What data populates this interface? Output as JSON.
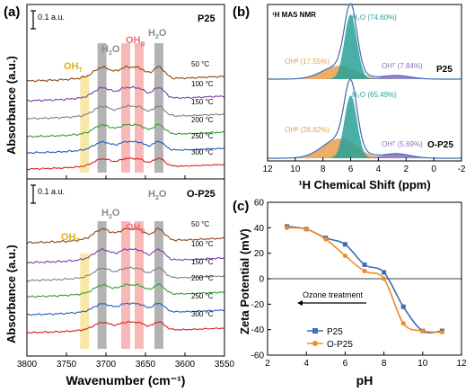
{
  "chart_data": [
    {
      "panel": "(a)",
      "type": "line",
      "xlabel": "Wavenumber (cm⁻¹)",
      "ylabel": "Absorbance (a.u.)",
      "xlim": [
        3800,
        3550
      ],
      "x_ticks": [
        3800,
        3750,
        3700,
        3650,
        3600,
        3550
      ],
      "scale_bar": "0.1 a.u.",
      "band_labels": {
        "OHT": "OH",
        "OHT_sub": "T",
        "H2O": "H",
        "H2O_sub": "2",
        "H2O_tail": "O",
        "OHB": "OH",
        "OHB_sub": "B"
      },
      "bands": [
        {
          "name": "OHT",
          "center": 3727,
          "color": "#f5e08a"
        },
        {
          "name": "H2O",
          "center": 3705,
          "color": "#9a9a9a"
        },
        {
          "name": "OHB",
          "center": 3675,
          "color": "#f7a0a0"
        },
        {
          "name": "OHB",
          "center": 3658,
          "color": "#f7a0a0"
        },
        {
          "name": "H2O",
          "center": 3633,
          "color": "#9a9a9a"
        }
      ],
      "subpanels": [
        {
          "title": "P25",
          "series": [
            {
              "name": "50 °C",
              "color": "#8b4513"
            },
            {
              "name": "100 °C",
              "color": "#7b3fa8"
            },
            {
              "name": "150 °C",
              "color": "#808080"
            },
            {
              "name": "200 °C",
              "color": "#2e9e2e"
            },
            {
              "name": "250 °C",
              "color": "#1f5fbf"
            },
            {
              "name": "300 °C",
              "color": "#d81e1e"
            }
          ]
        },
        {
          "title": "O-P25",
          "series": [
            {
              "name": "50 °C",
              "color": "#8b4513"
            },
            {
              "name": "100 °C",
              "color": "#7b3fa8"
            },
            {
              "name": "150 °C",
              "color": "#808080"
            },
            {
              "name": "200 °C",
              "color": "#2e9e2e"
            },
            {
              "name": "250 °C",
              "color": "#1f5fbf"
            },
            {
              "name": "300 °C",
              "color": "#d81e1e"
            }
          ]
        }
      ]
    },
    {
      "panel": "(b)",
      "type": "area",
      "title": "¹H MAS NMR",
      "xlabel": "¹H Chemical Shift (ppm)",
      "xlim": [
        12,
        -2
      ],
      "x_ticks": [
        12,
        10,
        8,
        6,
        4,
        2,
        0,
        -2
      ],
      "spectra": [
        {
          "sample": "P25",
          "components": [
            {
              "label": "H₂O (74.60%)",
              "center": 6.0,
              "color": "#2aa198"
            },
            {
              "label": "OHᴮ (17.55%)",
              "center": 6.8,
              "color": "#e8a050"
            },
            {
              "label": "OHᵀ (7.84%)",
              "center": 2.7,
              "color": "#8a6fc0"
            }
          ]
        },
        {
          "sample": "O-P25",
          "components": [
            {
              "label": "H₂O (65.49%)",
              "center": 6.0,
              "color": "#2aa198"
            },
            {
              "label": "OHᴮ (28.82%)",
              "center": 6.8,
              "color": "#e8a050"
            },
            {
              "label": "OHᵀ (5.69%)",
              "center": 2.7,
              "color": "#8a6fc0"
            }
          ]
        }
      ]
    },
    {
      "panel": "(c)",
      "type": "line",
      "xlabel": "pH",
      "ylabel": "Zeta Potential (mV)",
      "xlim": [
        2,
        12
      ],
      "ylim": [
        -60,
        60
      ],
      "x_ticks": [
        2,
        4,
        6,
        8,
        10,
        12
      ],
      "y_ticks": [
        -60,
        -40,
        -20,
        0,
        20,
        40,
        60
      ],
      "annotation": "Ozone treatment",
      "series": [
        {
          "name": "P25",
          "color": "#3b6eb5",
          "x": [
            3,
            4,
            5,
            6,
            7,
            8,
            9,
            10,
            11
          ],
          "y": [
            41,
            39,
            32,
            27,
            11,
            5,
            -22,
            -41,
            -41
          ]
        },
        {
          "name": "O-P25",
          "color": "#f08a24",
          "x": [
            3,
            4,
            5,
            6,
            7,
            8,
            9,
            10,
            11
          ],
          "y": [
            40,
            39,
            31,
            18,
            6,
            0,
            -35,
            -41,
            -42
          ]
        }
      ]
    }
  ]
}
